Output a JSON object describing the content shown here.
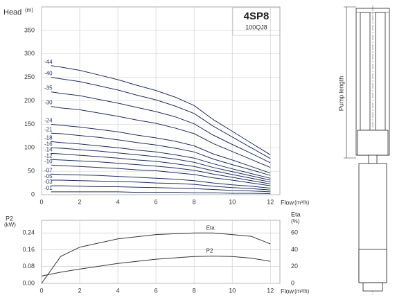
{
  "chart_data": [
    {
      "type": "line",
      "y_label": "Head",
      "y_unit": "(m)",
      "x_label": "Flow",
      "x_unit": "(m³/h)",
      "model": "4SP8",
      "subtitle": "100QJ8",
      "x": [
        0.5,
        1,
        2,
        3,
        4,
        5,
        6,
        7,
        8,
        9,
        10,
        11,
        12
      ],
      "xlim": [
        0,
        12.5
      ],
      "xticks": [
        0,
        2,
        4,
        6,
        8,
        10,
        12
      ],
      "ylim": [
        0,
        400
      ],
      "yticks": [
        0,
        50,
        100,
        150,
        200,
        250,
        300,
        350
      ],
      "grid": true,
      "series": [
        {
          "name": "-44",
          "color": "#1f2d5a",
          "values": [
            275,
            272,
            265,
            255,
            245,
            233,
            222,
            208,
            190,
            160,
            135,
            110,
            85
          ]
        },
        {
          "name": "-40",
          "color": "#1f2d5a",
          "values": [
            250,
            247,
            241,
            232,
            223,
            212,
            202,
            189,
            173,
            146,
            123,
            100,
            77
          ]
        },
        {
          "name": "-35",
          "color": "#1f2d5a",
          "values": [
            219,
            216,
            211,
            203,
            195,
            186,
            177,
            166,
            151,
            127,
            107,
            88,
            68
          ]
        },
        {
          "name": "-30",
          "color": "#1f2d5a",
          "values": [
            188,
            185,
            181,
            174,
            167,
            159,
            152,
            142,
            130,
            109,
            92,
            75,
            58
          ]
        },
        {
          "name": "-24",
          "color": "#1f2d5a",
          "values": [
            150,
            148,
            144,
            139,
            134,
            127,
            121,
            114,
            104,
            87,
            74,
            60,
            46
          ]
        },
        {
          "name": "-21",
          "color": "#1f2d5a",
          "values": [
            131,
            130,
            126,
            122,
            117,
            111,
            106,
            99,
            91,
            76,
            64,
            53,
            41
          ]
        },
        {
          "name": "-18",
          "color": "#1f2d5a",
          "values": [
            113,
            111,
            108,
            104,
            100,
            95,
            91,
            85,
            78,
            66,
            55,
            45,
            35
          ]
        },
        {
          "name": "-16",
          "color": "#1f2d5a",
          "values": [
            100,
            99,
            96,
            93,
            89,
            85,
            81,
            76,
            69,
            58,
            49,
            40,
            31
          ]
        },
        {
          "name": "-14",
          "color": "#1f2d5a",
          "values": [
            88,
            87,
            84,
            81,
            78,
            74,
            71,
            66,
            60,
            51,
            43,
            35,
            27
          ]
        },
        {
          "name": "-12",
          "color": "#1f2d5a",
          "values": [
            75,
            74,
            72,
            70,
            67,
            64,
            61,
            57,
            52,
            44,
            37,
            30,
            23
          ]
        },
        {
          "name": "-10",
          "color": "#1f2d5a",
          "values": [
            63,
            62,
            60,
            58,
            56,
            53,
            51,
            47,
            43,
            36,
            31,
            25,
            19
          ]
        },
        {
          "name": "-07",
          "color": "#1f2d5a",
          "values": [
            44,
            43,
            42,
            41,
            39,
            37,
            35,
            33,
            30,
            25,
            21,
            18,
            14
          ]
        },
        {
          "name": "-05",
          "color": "#1f2d5a",
          "values": [
            31,
            31,
            30,
            29,
            28,
            27,
            25,
            24,
            22,
            18,
            15,
            13,
            10
          ]
        },
        {
          "name": "-03",
          "color": "#1f2d5a",
          "values": [
            19,
            19,
            18,
            17,
            17,
            16,
            15,
            14,
            13,
            11,
            9,
            8,
            6
          ]
        },
        {
          "name": "-01",
          "color": "#1f2d5a",
          "values": [
            6,
            6,
            6,
            6,
            6,
            5,
            5,
            5,
            4,
            4,
            3,
            3,
            2
          ]
        }
      ]
    },
    {
      "type": "line",
      "y_label": "P2",
      "y_unit": "(kW)",
      "y2_label": "Eta",
      "y2_unit": "(%)",
      "x_label": "Flow",
      "x_unit": "(m³/h)",
      "x": [
        0,
        1,
        2,
        4,
        6,
        8,
        9,
        10,
        11,
        12
      ],
      "xlim": [
        0,
        12.5
      ],
      "xticks": [
        0,
        2,
        4,
        6,
        8,
        10,
        12
      ],
      "ylim": [
        0,
        0.3
      ],
      "yticks": [
        {
          "value": 0,
          "label": "0.00"
        },
        {
          "value": 0.08,
          "label": "0.08"
        },
        {
          "value": 0.16,
          "label": "0.16"
        },
        {
          "value": 0.24,
          "label": "0.24"
        }
      ],
      "y2lim": [
        0,
        75
      ],
      "y2ticks": [
        0,
        20,
        40,
        60
      ],
      "grid": true,
      "series": [
        {
          "name": "Eta",
          "color": "#333333",
          "axis": "y2",
          "values": [
            0,
            32,
            43,
            53,
            58,
            60,
            60,
            58,
            56,
            47
          ]
        },
        {
          "name": "P2",
          "color": "#333333",
          "values": [
            0.035,
            0.053,
            0.068,
            0.095,
            0.115,
            0.128,
            0.13,
            0.128,
            0.12,
            0.105
          ]
        }
      ]
    }
  ],
  "drawing": {
    "label": "Pump length"
  }
}
